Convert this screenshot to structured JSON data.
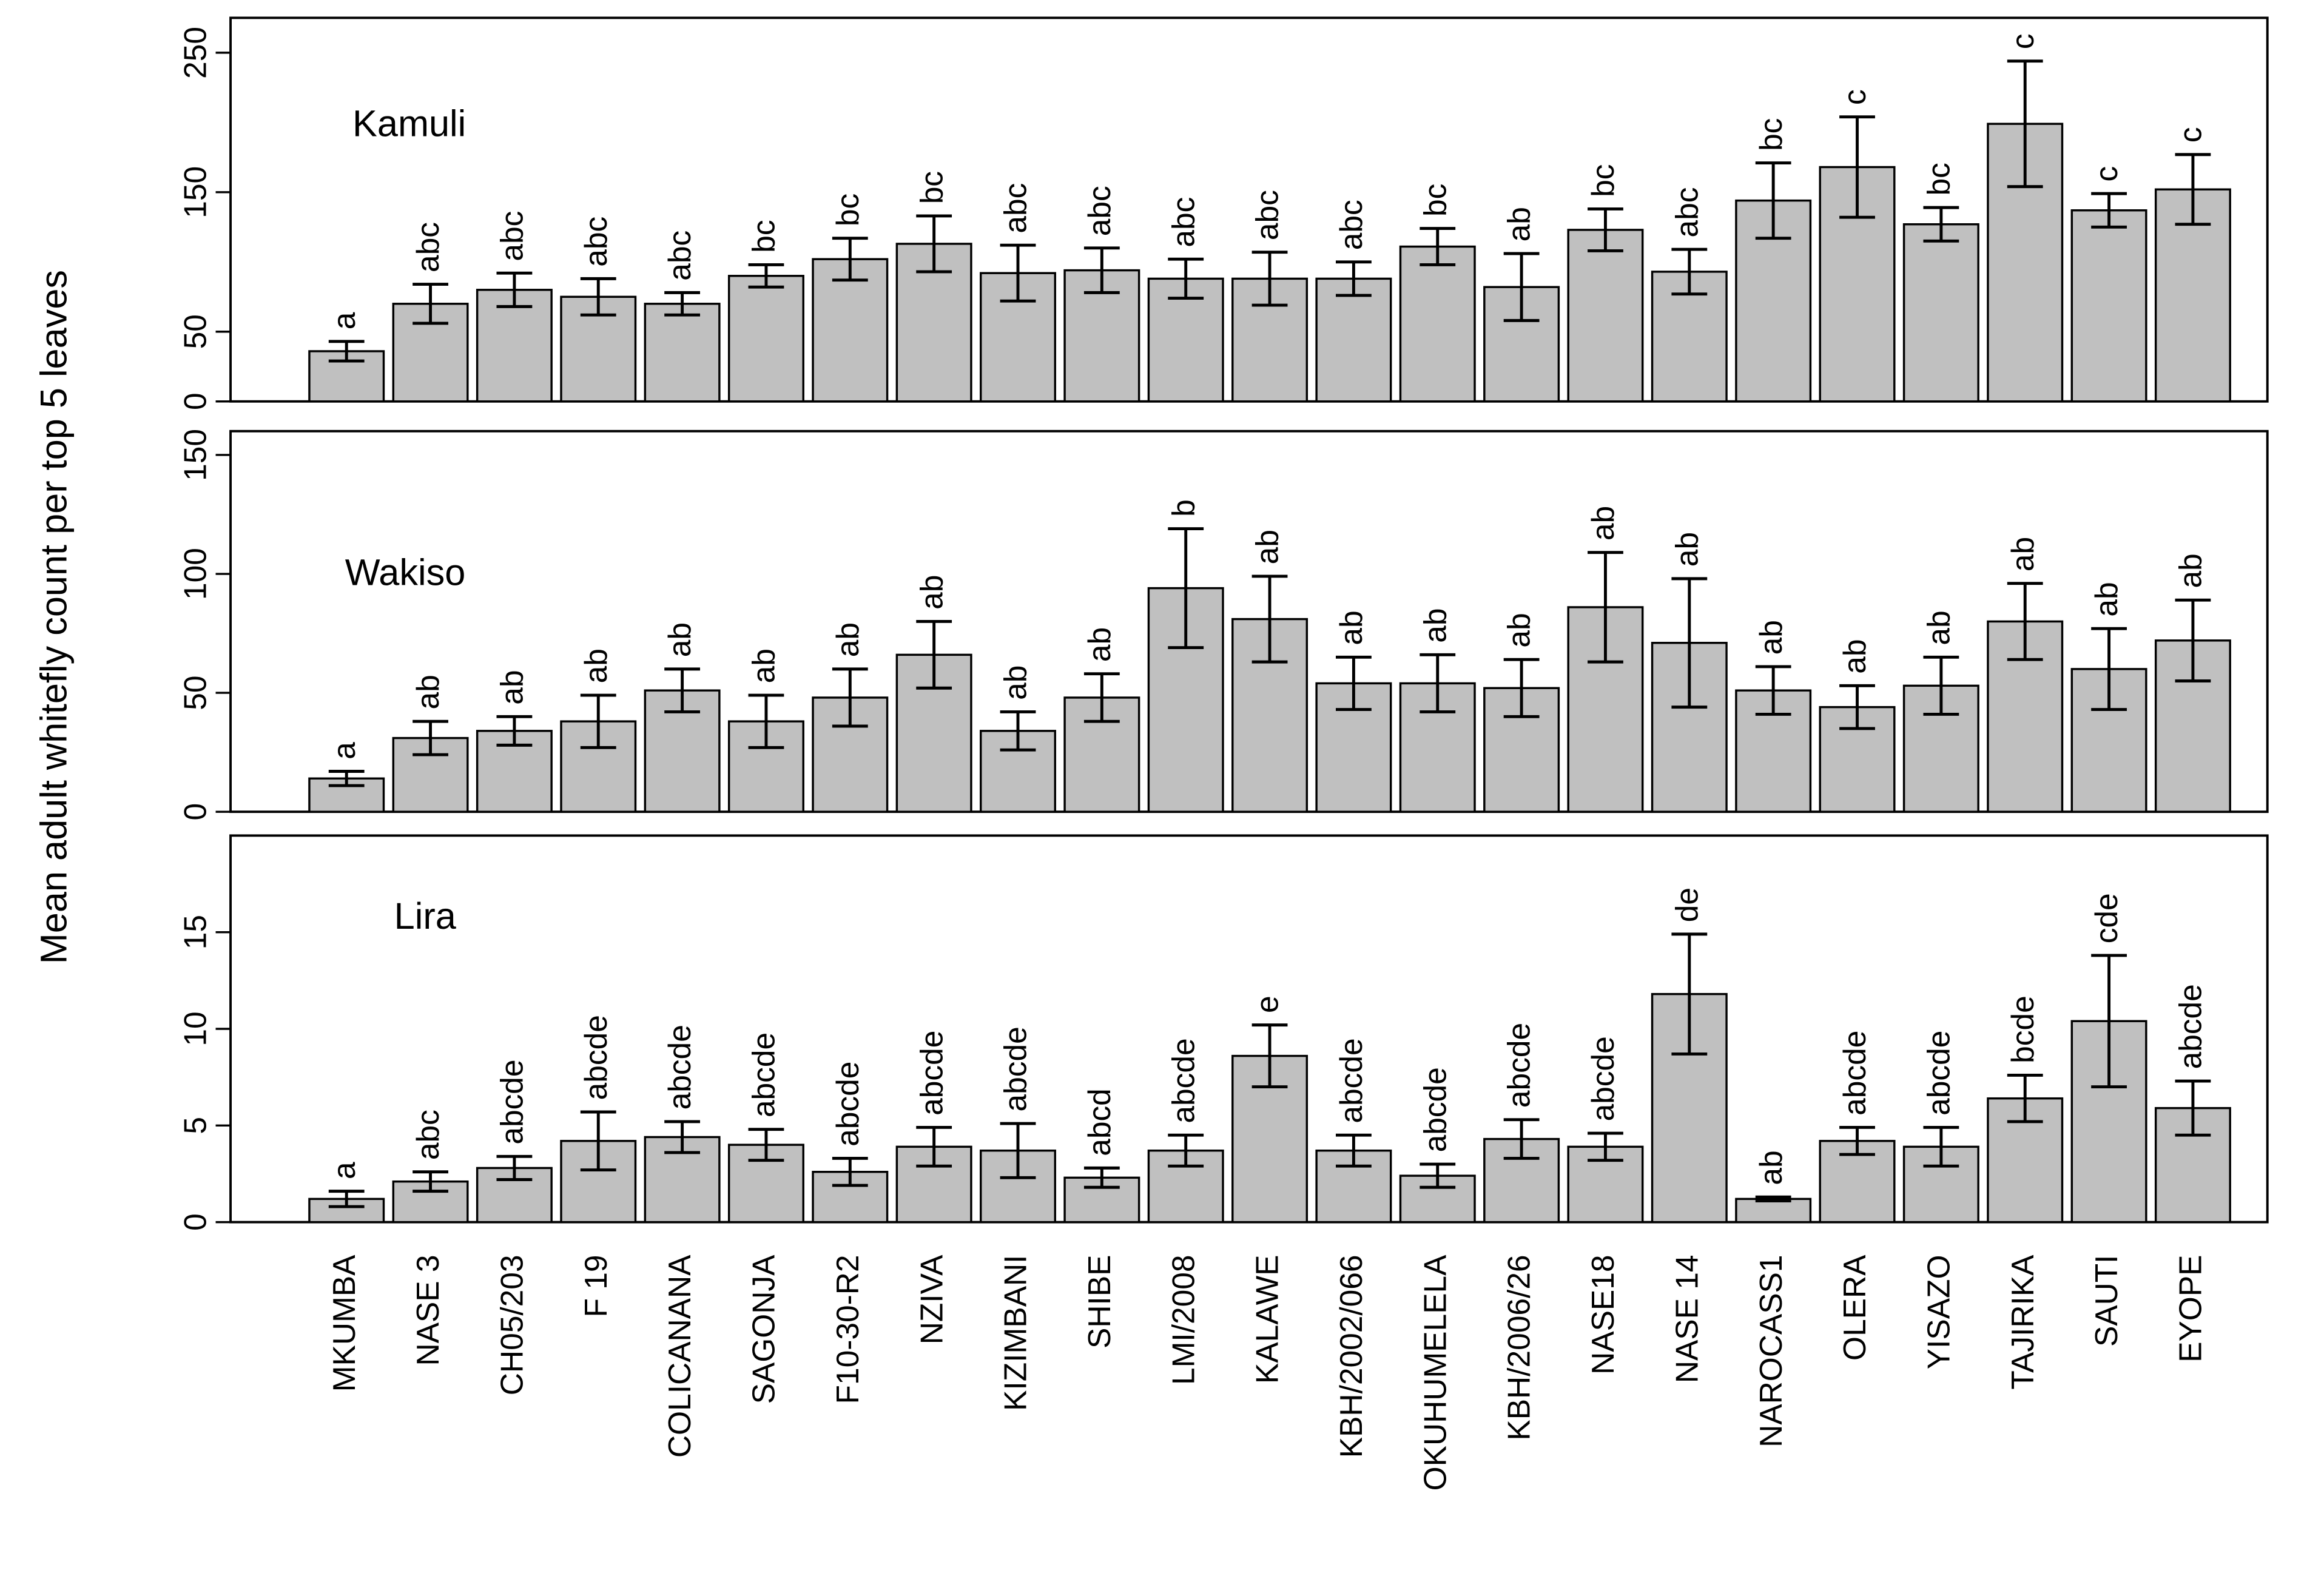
{
  "ylabel": "Mean adult whitefly count per top 5 leaves",
  "chart_data": [
    {
      "type": "bar",
      "label": "Kamuli",
      "color": "#c0c0c0",
      "ylim": [
        0,
        275
      ],
      "yticks": [
        0,
        50,
        150,
        250
      ],
      "values": [
        36,
        70,
        80,
        75,
        70,
        90,
        102,
        113,
        92,
        94,
        88,
        88,
        88,
        111,
        82,
        123,
        93,
        144,
        168,
        127,
        199,
        137,
        152
      ],
      "errors": [
        7,
        14,
        12,
        13,
        8,
        8,
        15,
        20,
        20,
        16,
        14,
        19,
        12,
        13,
        24,
        15,
        16,
        27,
        36,
        12,
        45,
        12,
        25
      ],
      "group_letters": [
        "a",
        "abc",
        "abc",
        "abc",
        "abc",
        "bc",
        "bc",
        "bc",
        "abc",
        "abc",
        "abc",
        "abc",
        "abc",
        "bc",
        "ab",
        "bc",
        "abc",
        "bc",
        "c",
        "bc",
        "c",
        "c",
        "c"
      ]
    },
    {
      "type": "bar",
      "label": "Wakiso",
      "color": "#c0c0c0",
      "ylim": [
        0,
        160
      ],
      "yticks": [
        0,
        50,
        100,
        150
      ],
      "values": [
        14,
        31,
        34,
        38,
        51,
        38,
        48,
        66,
        34,
        48,
        94,
        81,
        54,
        54,
        52,
        86,
        71,
        51,
        44,
        53,
        80,
        60,
        72
      ],
      "errors": [
        3,
        7,
        6,
        11,
        9,
        11,
        12,
        14,
        8,
        10,
        25,
        18,
        11,
        12,
        12,
        23,
        27,
        10,
        9,
        12,
        16,
        17,
        17
      ],
      "group_letters": [
        "a",
        "ab",
        "ab",
        "ab",
        "ab",
        "ab",
        "ab",
        "ab",
        "ab",
        "ab",
        "b",
        "ab",
        "ab",
        "ab",
        "ab",
        "ab",
        "ab",
        "ab",
        "ab",
        "ab",
        "ab",
        "ab",
        "ab"
      ]
    },
    {
      "type": "bar",
      "label": "Lira",
      "color": "#c0c0c0",
      "ylim": [
        0,
        20
      ],
      "yticks": [
        0,
        5,
        10,
        15
      ],
      "categories": [
        "MKUMBA",
        "NASE 3",
        "CH05/203",
        "F 19",
        "COLICANANA",
        "SAGONJA",
        "F10-30-R2",
        "NZIVA",
        "KIZIMBANI",
        "SHIBE",
        "LMI/2008",
        "KALAWE",
        "KBH/2002/066",
        "OKUHUMELELA",
        "KBH/2006/26",
        "NASE18",
        "NASE 14",
        "NAROCASS1",
        "OLERA",
        "YISAZO",
        "TAJIRIKA",
        "SAUTI",
        "EYOPE"
      ],
      "values": [
        1.2,
        2.1,
        2.8,
        4.2,
        4.4,
        4.0,
        2.6,
        3.9,
        3.7,
        2.3,
        3.7,
        8.6,
        3.7,
        2.4,
        4.3,
        3.9,
        11.8,
        1.2,
        4.2,
        3.9,
        6.4,
        10.4,
        5.9
      ],
      "errors": [
        0.4,
        0.5,
        0.6,
        1.5,
        0.8,
        0.8,
        0.7,
        1.0,
        1.4,
        0.5,
        0.8,
        1.6,
        0.8,
        0.6,
        1.0,
        0.7,
        3.1,
        0.1,
        0.7,
        1.0,
        1.2,
        3.4,
        1.4
      ],
      "group_letters": [
        "a",
        "abc",
        "abcde",
        "abcde",
        "abcde",
        "abcde",
        "abcde",
        "abcde",
        "abcde",
        "abcd",
        "abcde",
        "e",
        "abcde",
        "abcde",
        "abcde",
        "abcde",
        "de",
        "ab",
        "abcde",
        "abcde",
        "bcde",
        "cde",
        "abcde"
      ]
    }
  ]
}
